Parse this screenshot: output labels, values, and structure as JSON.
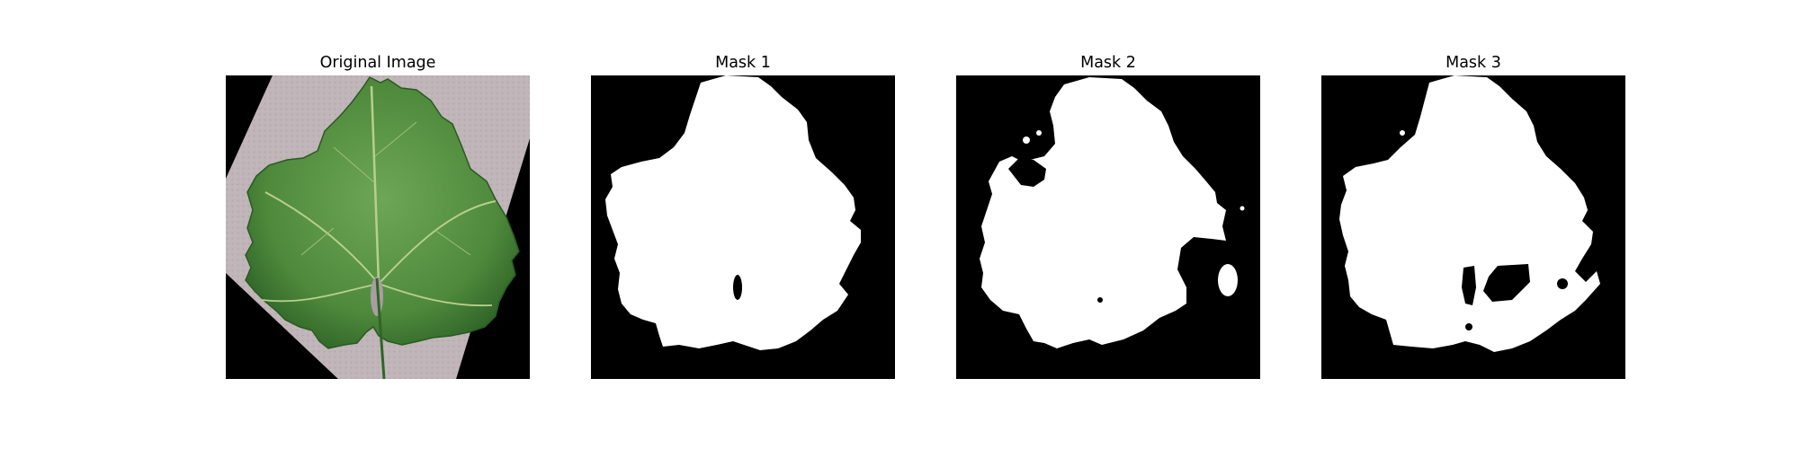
{
  "figure": {
    "panels": [
      {
        "title": "Original Image",
        "kind": "photo",
        "icon": "grape-leaf-photo"
      },
      {
        "title": "Mask 1",
        "kind": "mask"
      },
      {
        "title": "Mask 2",
        "kind": "mask"
      },
      {
        "title": "Mask 3",
        "kind": "mask"
      }
    ],
    "colors": {
      "leaf": "#4f8a3c",
      "leaf_dark": "#2f6528",
      "vein": "#b8cf8c",
      "paper": "#bdb1b4",
      "mask_fg": "#ffffff",
      "mask_bg": "#000000"
    }
  }
}
